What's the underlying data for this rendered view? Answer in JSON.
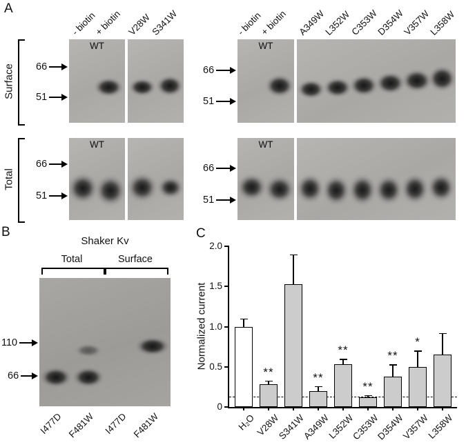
{
  "figure": {
    "panel_a": {
      "label": "A",
      "row_labels": [
        "Surface",
        "Total"
      ],
      "wt": "WT",
      "left_lanes": [
        "- biotin",
        "+ biotin",
        "V28W",
        "S341W"
      ],
      "right_lanes": [
        "- biotin",
        "+ biotin",
        "A349W",
        "L352W",
        "C353W",
        "D354W",
        "V357W",
        "L358W"
      ],
      "mw_66": "66",
      "mw_51": "51"
    },
    "panel_b": {
      "label": "B",
      "title": "Shaker Kv",
      "group_labels": [
        "Total",
        "Surface"
      ],
      "mw_110": "110",
      "mw_66": "66",
      "lanes": [
        "I477D",
        "F481W",
        "I477D",
        "F481W"
      ]
    },
    "panel_c": {
      "label": "C"
    }
  },
  "chart_data": {
    "type": "bar",
    "ylabel": "Normalized current",
    "categories": [
      "H₂O",
      "V28W",
      "S341W",
      "A349W",
      "L352W",
      "C353W",
      "D354W",
      "V357W",
      "L358W"
    ],
    "values": [
      1.0,
      0.28,
      1.53,
      0.2,
      0.53,
      0.12,
      0.38,
      0.5,
      0.65
    ],
    "errors": [
      0.1,
      0.05,
      0.37,
      0.06,
      0.07,
      0.03,
      0.15,
      0.2,
      0.27
    ],
    "significance": [
      "",
      "**",
      "",
      "**",
      "**",
      "**",
      "**",
      "*",
      ""
    ],
    "bar_fill": [
      "#ffffff",
      "#cccccc",
      "#cccccc",
      "#cccccc",
      "#cccccc",
      "#cccccc",
      "#cccccc",
      "#cccccc",
      "#cccccc"
    ],
    "ylim": [
      0,
      2.0
    ],
    "yticks": [
      0,
      0.5,
      1.0,
      1.5,
      2.0
    ],
    "ytick_labels": [
      "0",
      "0.5",
      "1.0",
      "1.5",
      "2.0"
    ],
    "dashed_line_y": 0.13,
    "grid": false,
    "legend": null
  }
}
